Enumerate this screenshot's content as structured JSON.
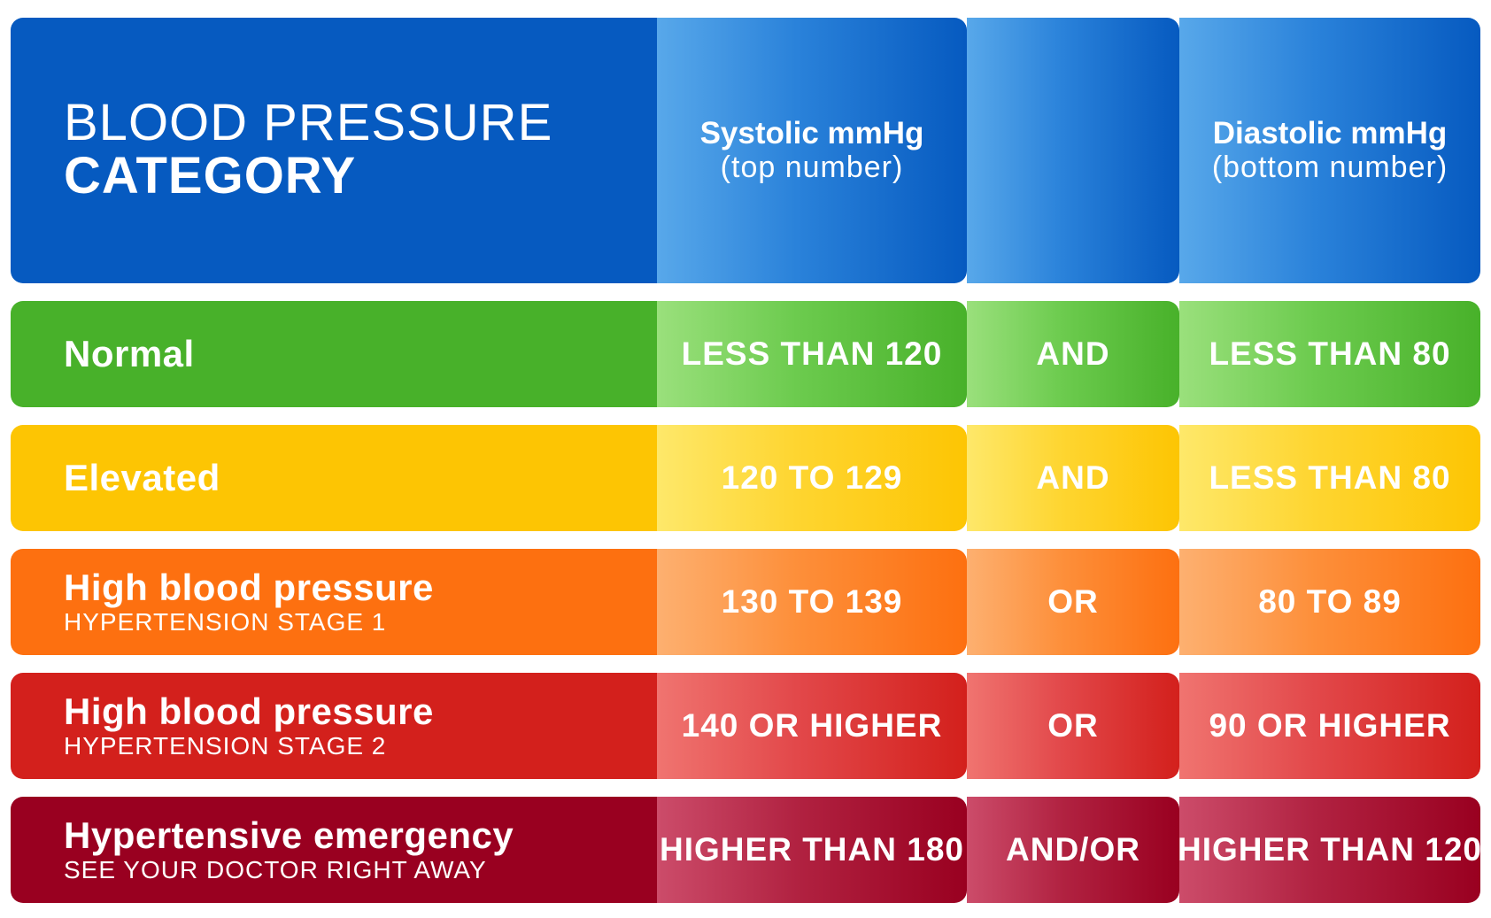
{
  "header": {
    "category_line1": "BLOOD PRESSURE",
    "category_line2": "CATEGORY",
    "systolic_title": "Systolic mmHg",
    "systolic_sub": "(top number)",
    "diastolic_title": "Diastolic mmHg",
    "diastolic_sub": "(bottom number)"
  },
  "rows": [
    {
      "category": "Normal",
      "subtitle": "",
      "systolic": "LESS THAN 120",
      "operator": "AND",
      "diastolic": "LESS THAN 80",
      "color": "#48b12a"
    },
    {
      "category": "Elevated",
      "subtitle": "",
      "systolic": "120 TO 129",
      "operator": "AND",
      "diastolic": "LESS THAN 80",
      "color": "#fdc503"
    },
    {
      "category": "High blood pressure",
      "subtitle": "HYPERTENSION STAGE 1",
      "systolic": "130 TO 139",
      "operator": "OR",
      "diastolic": "80 TO 89",
      "color": "#fd7010"
    },
    {
      "category": "High blood pressure",
      "subtitle": "HYPERTENSION STAGE 2",
      "systolic": "140 OR HIGHER",
      "operator": "OR",
      "diastolic": "90 OR HIGHER",
      "color": "#d3201c"
    },
    {
      "category": "Hypertensive emergency",
      "subtitle": "SEE YOUR DOCTOR RIGHT AWAY",
      "systolic": "HIGHER THAN 180",
      "operator": "AND/OR",
      "diastolic": "HIGHER THAN 120",
      "color": "#990020"
    }
  ],
  "header_color": "#065ac0"
}
